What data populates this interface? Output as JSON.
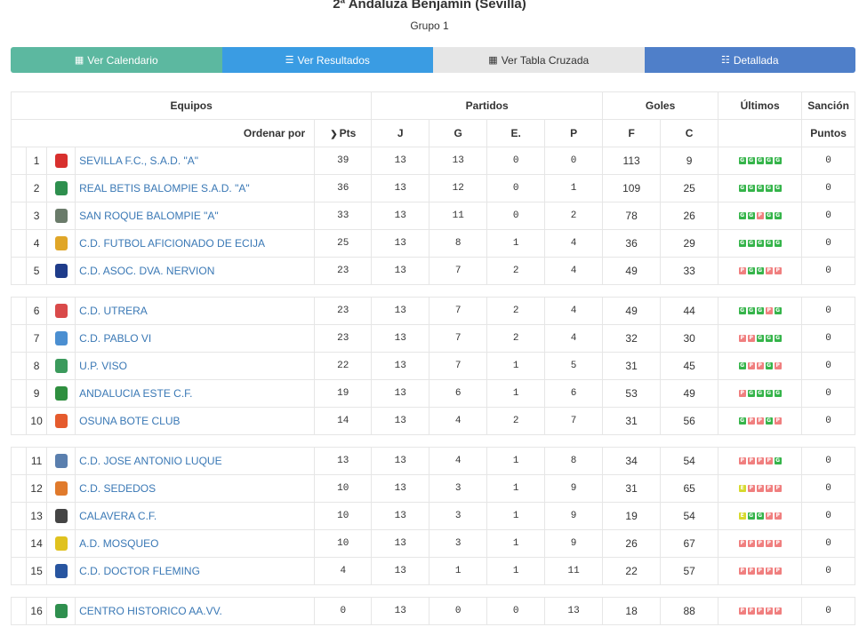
{
  "header": {
    "title": "2ª Andaluza Benjamín (Sevilla)",
    "subtitle": "Grupo 1"
  },
  "buttons": {
    "calendar": "Ver Calendario",
    "results": "Ver Resultados",
    "cross": "Ver Tabla Cruzada",
    "detailed": "Detallada"
  },
  "table": {
    "groups": {
      "teams": "Equipos",
      "matches": "Partidos",
      "goals": "Goles",
      "last": "Últimos",
      "sanction": "Sanción"
    },
    "cols": {
      "order_by": "Ordenar por",
      "pts": "Pts",
      "j": "J",
      "g": "G",
      "e": "E.",
      "p": "P",
      "f": "F",
      "c": "C",
      "points": "Puntos"
    },
    "rows": [
      {
        "pos": "1",
        "team": "SEVILLA F.C., S.A.D. \"A\"",
        "pts": "39",
        "j": "13",
        "g": "13",
        "e": "0",
        "p": "0",
        "f": "113",
        "c": "9",
        "last": [
          "G",
          "G",
          "G",
          "G",
          "G"
        ],
        "san": "0",
        "crest": "#d8302e"
      },
      {
        "pos": "2",
        "team": "REAL BETIS BALOMPIE S.A.D. \"A\"",
        "pts": "36",
        "j": "13",
        "g": "12",
        "e": "0",
        "p": "1",
        "f": "109",
        "c": "25",
        "last": [
          "G",
          "G",
          "G",
          "G",
          "G"
        ],
        "san": "0",
        "crest": "#2e8f4e"
      },
      {
        "pos": "3",
        "team": "SAN ROQUE BALOMPIE \"A\"",
        "pts": "33",
        "j": "13",
        "g": "11",
        "e": "0",
        "p": "2",
        "f": "78",
        "c": "26",
        "last": [
          "G",
          "G",
          "P",
          "G",
          "G"
        ],
        "san": "0",
        "crest": "#6a7b6a"
      },
      {
        "pos": "4",
        "team": "C.D. FUTBOL AFICIONADO DE ECIJA",
        "pts": "25",
        "j": "13",
        "g": "8",
        "e": "1",
        "p": "4",
        "f": "36",
        "c": "29",
        "last": [
          "G",
          "G",
          "G",
          "G",
          "G"
        ],
        "san": "0",
        "crest": "#e0a628"
      },
      {
        "pos": "5",
        "team": "C.D. ASOC. DVA. NERVION",
        "pts": "23",
        "j": "13",
        "g": "7",
        "e": "2",
        "p": "4",
        "f": "49",
        "c": "33",
        "last": [
          "P",
          "G",
          "G",
          "P",
          "P"
        ],
        "san": "0",
        "crest": "#1f3c8a"
      },
      {
        "gap": true
      },
      {
        "pos": "6",
        "team": "C.D. UTRERA",
        "pts": "23",
        "j": "13",
        "g": "7",
        "e": "2",
        "p": "4",
        "f": "49",
        "c": "44",
        "last": [
          "G",
          "G",
          "G",
          "P",
          "G"
        ],
        "san": "0",
        "crest": "#d94a4a"
      },
      {
        "pos": "7",
        "team": "C.D. PABLO VI",
        "pts": "23",
        "j": "13",
        "g": "7",
        "e": "2",
        "p": "4",
        "f": "32",
        "c": "30",
        "last": [
          "P",
          "P",
          "G",
          "G",
          "G"
        ],
        "san": "0",
        "crest": "#4b8fd1"
      },
      {
        "pos": "8",
        "team": "U.P. VISO",
        "pts": "22",
        "j": "13",
        "g": "7",
        "e": "1",
        "p": "5",
        "f": "31",
        "c": "45",
        "last": [
          "G",
          "P",
          "P",
          "G",
          "P"
        ],
        "san": "0",
        "crest": "#3b9a5c"
      },
      {
        "pos": "9",
        "team": "ANDALUCIA ESTE C.F.",
        "pts": "19",
        "j": "13",
        "g": "6",
        "e": "1",
        "p": "6",
        "f": "53",
        "c": "49",
        "last": [
          "P",
          "G",
          "G",
          "G",
          "G"
        ],
        "san": "0",
        "crest": "#2f8f3f"
      },
      {
        "pos": "10",
        "team": "OSUNA BOTE CLUB",
        "pts": "14",
        "j": "13",
        "g": "4",
        "e": "2",
        "p": "7",
        "f": "31",
        "c": "56",
        "last": [
          "G",
          "P",
          "P",
          "G",
          "P"
        ],
        "san": "0",
        "crest": "#e55b2d"
      },
      {
        "gap": true
      },
      {
        "pos": "11",
        "team": "C.D. JOSE ANTONIO LUQUE",
        "pts": "13",
        "j": "13",
        "g": "4",
        "e": "1",
        "p": "8",
        "f": "34",
        "c": "54",
        "last": [
          "P",
          "P",
          "P",
          "P",
          "G"
        ],
        "san": "0",
        "crest": "#5a7fae"
      },
      {
        "pos": "12",
        "team": "C.D. SEDEDOS",
        "pts": "10",
        "j": "13",
        "g": "3",
        "e": "1",
        "p": "9",
        "f": "31",
        "c": "65",
        "last": [
          "E",
          "P",
          "P",
          "P",
          "P"
        ],
        "san": "0",
        "crest": "#e07a2c"
      },
      {
        "pos": "13",
        "team": "CALAVERA C.F.",
        "pts": "10",
        "j": "13",
        "g": "3",
        "e": "1",
        "p": "9",
        "f": "19",
        "c": "54",
        "last": [
          "E",
          "G",
          "G",
          "P",
          "P"
        ],
        "san": "0",
        "crest": "#444444"
      },
      {
        "pos": "14",
        "team": "A.D. MOSQUEO",
        "pts": "10",
        "j": "13",
        "g": "3",
        "e": "1",
        "p": "9",
        "f": "26",
        "c": "67",
        "last": [
          "P",
          "P",
          "P",
          "P",
          "P"
        ],
        "san": "0",
        "crest": "#e0c21f"
      },
      {
        "pos": "15",
        "team": "C.D. DOCTOR FLEMING",
        "pts": "4",
        "j": "13",
        "g": "1",
        "e": "1",
        "p": "11",
        "f": "22",
        "c": "57",
        "last": [
          "P",
          "P",
          "P",
          "P",
          "P"
        ],
        "san": "0",
        "crest": "#2855a0"
      },
      {
        "gap": true
      },
      {
        "pos": "16",
        "team": "CENTRO HISTORICO AA.VV.",
        "pts": "0",
        "j": "13",
        "g": "0",
        "e": "0",
        "p": "13",
        "f": "18",
        "c": "88",
        "last": [
          "P",
          "P",
          "P",
          "P",
          "P"
        ],
        "san": "0",
        "crest": "#2f8f4e"
      }
    ]
  }
}
